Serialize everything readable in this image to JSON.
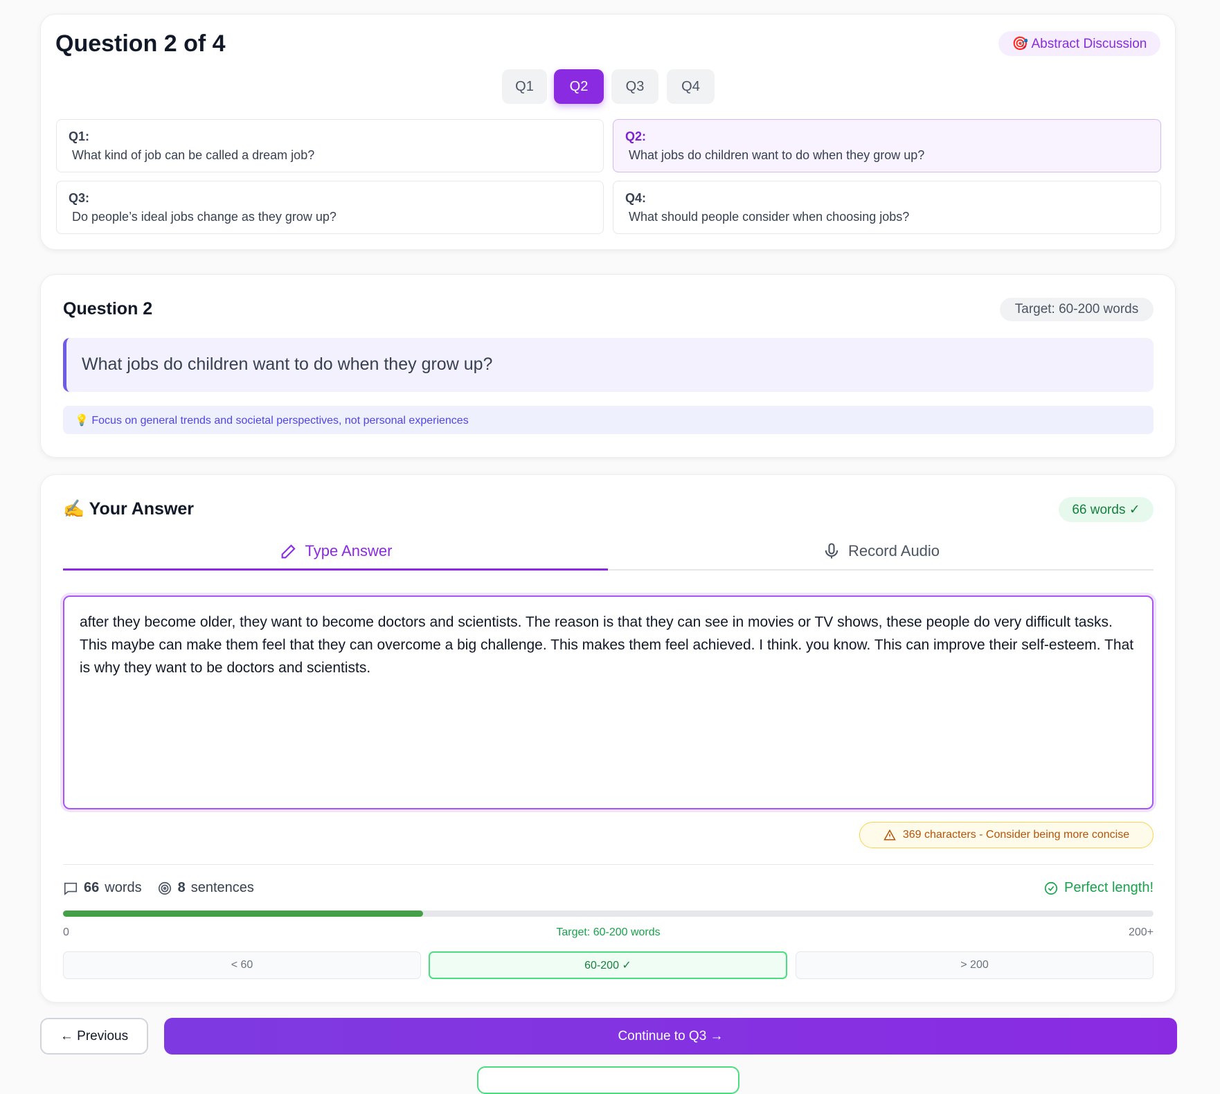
{
  "header": {
    "title": "Question 2 of 4",
    "badge": "🎯 Abstract Discussion",
    "tabs": [
      "Q1",
      "Q2",
      "Q3",
      "Q4"
    ]
  },
  "questions": [
    {
      "label": "Q1:",
      "text": "What kind of job can be called a dream job?"
    },
    {
      "label": "Q2:",
      "text": "What jobs do children want to do when they grow up?"
    },
    {
      "label": "Q3:",
      "text": "Do people’s ideal jobs change as they grow up?"
    },
    {
      "label": "Q4:",
      "text": "What should people consider when choosing jobs?"
    }
  ],
  "current": {
    "title": "Question 2",
    "target": "Target: 60-200 words",
    "question": "What jobs do children want to do when they grow up?",
    "hint": "💡 Focus on general trends and societal perspectives, not personal experiences"
  },
  "answer": {
    "title": "✍️ Your Answer",
    "badge": "66 words ✓",
    "tab_type": "Type Answer",
    "tab_record": "Record Audio",
    "text": "after they become older, they want to become doctors and scientists. The reason is that they can see in movies or TV shows, these people do very difficult tasks. This maybe can make them feel that they can overcome a big challenge. This makes them feel achieved. I think. you know. This can improve their self-esteem. That is why they want to be doctors and scientists.",
    "warning": "369 characters - Consider being more concise"
  },
  "stats": {
    "words": 66,
    "words_label": "words",
    "sentences": 8,
    "sentences_label": "sentences",
    "status": "Perfect length!"
  },
  "scale": {
    "start": 0,
    "end": {
      "value": 200,
      "label": "200+"
    },
    "target": "Target: 60-200 words",
    "ranges": [
      "< 60",
      "60-200 ✓",
      "> 200"
    ]
  },
  "buttons": {
    "previous": "← Previous",
    "continue": "Continue to Q3 →"
  }
}
